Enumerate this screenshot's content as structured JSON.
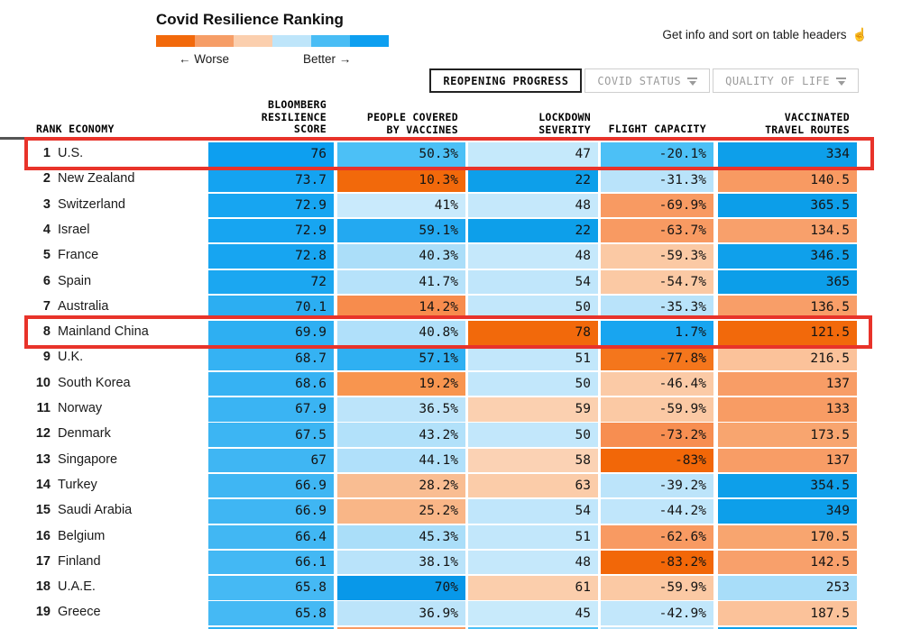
{
  "legend": {
    "title": "Covid Resilience Ranking",
    "worse_label": "← Worse",
    "better_label": "Better →",
    "gradient": [
      "#f2690b",
      "#f69d66",
      "#fbcfae",
      "#bee5fa",
      "#49bdf5",
      "#0d9ff0"
    ]
  },
  "hint": {
    "text": "Get info and sort on table headers",
    "icon": "pointer-hand-icon",
    "icon_glyph": "☝"
  },
  "tabs": [
    {
      "label": "REOPENING PROGRESS",
      "active": true,
      "has_filter_icon": false
    },
    {
      "label": "COVID STATUS",
      "active": false,
      "has_filter_icon": true
    },
    {
      "label": "QUALITY OF LIFE",
      "active": false,
      "has_filter_icon": true
    }
  ],
  "colors": {
    "highlight_box": "#e8332a",
    "active_tab_border": "#222222",
    "inactive_tab_border": "#cfcfcf",
    "inactive_tab_text": "#9b9b9b"
  },
  "table": {
    "headers": {
      "rank_economy": "RANK ECONOMY",
      "score": "BLOOMBERG\nRESILIENCE\nSCORE",
      "vaccines": "PEOPLE COVERED\nBY VACCINES",
      "lockdown": "LOCKDOWN\nSEVERITY",
      "flight": "FLIGHT CAPACITY",
      "routes": "VACCINATED\nTRAVEL ROUTES"
    },
    "rows": [
      {
        "rank": "1",
        "economy": "U.S.",
        "highlighted": true,
        "score": {
          "v": "76",
          "c": "#0d9ff0"
        },
        "vaccines": {
          "v": "50.3%",
          "c": "#4cc0f6"
        },
        "lockdown": {
          "v": "47",
          "c": "#c5e9fb"
        },
        "flight": {
          "v": "-20.1%",
          "c": "#4cc0f6"
        },
        "routes": {
          "v": "334",
          "c": "#0d9fea"
        }
      },
      {
        "rank": "2",
        "economy": "New Zealand",
        "highlighted": false,
        "score": {
          "v": "73.7",
          "c": "#14a3f1"
        },
        "vaccines": {
          "v": "10.3%",
          "c": "#f2690b"
        },
        "lockdown": {
          "v": "22",
          "c": "#0d9fea"
        },
        "flight": {
          "v": "-31.3%",
          "c": "#b9e3fa"
        },
        "routes": {
          "v": "140.5",
          "c": "#f89a62"
        }
      },
      {
        "rank": "3",
        "economy": "Switzerland",
        "highlighted": false,
        "score": {
          "v": "72.9",
          "c": "#17a5f1"
        },
        "vaccines": {
          "v": "41%",
          "c": "#c9eafc"
        },
        "lockdown": {
          "v": "48",
          "c": "#c5e8fb"
        },
        "flight": {
          "v": "-69.9%",
          "c": "#f89a62"
        },
        "routes": {
          "v": "365.5",
          "c": "#0c9ee9"
        }
      },
      {
        "rank": "4",
        "economy": "Israel",
        "highlighted": false,
        "score": {
          "v": "72.9",
          "c": "#17a5f1"
        },
        "vaccines": {
          "v": "59.1%",
          "c": "#23a9f1"
        },
        "lockdown": {
          "v": "22",
          "c": "#0d9fea"
        },
        "flight": {
          "v": "-63.7%",
          "c": "#f89a62"
        },
        "routes": {
          "v": "134.5",
          "c": "#f8a06b"
        }
      },
      {
        "rank": "5",
        "economy": "France",
        "highlighted": false,
        "score": {
          "v": "72.8",
          "c": "#17a5f1"
        },
        "vaccines": {
          "v": "40.3%",
          "c": "#abdef9"
        },
        "lockdown": {
          "v": "48",
          "c": "#c5e8fb"
        },
        "flight": {
          "v": "-59.3%",
          "c": "#fbc9a4"
        },
        "routes": {
          "v": "346.5",
          "c": "#0fa0eb"
        }
      },
      {
        "rank": "6",
        "economy": "Spain",
        "highlighted": false,
        "score": {
          "v": "72",
          "c": "#1ba7f1"
        },
        "vaccines": {
          "v": "41.7%",
          "c": "#b6e2fa"
        },
        "lockdown": {
          "v": "54",
          "c": "#c0e6fb"
        },
        "flight": {
          "v": "-54.7%",
          "c": "#fbc9a4"
        },
        "routes": {
          "v": "365",
          "c": "#0c9ee9"
        }
      },
      {
        "rank": "7",
        "economy": "Australia",
        "highlighted": false,
        "score": {
          "v": "70.1",
          "c": "#2caef2"
        },
        "vaccines": {
          "v": "14.2%",
          "c": "#f78c4d"
        },
        "lockdown": {
          "v": "50",
          "c": "#c2e7fb"
        },
        "flight": {
          "v": "-35.3%",
          "c": "#b9e3fa"
        },
        "routes": {
          "v": "136.5",
          "c": "#f89e68"
        }
      },
      {
        "rank": "8",
        "economy": "Mainland China",
        "highlighted": true,
        "score": {
          "v": "69.9",
          "c": "#2eaff2"
        },
        "vaccines": {
          "v": "40.8%",
          "c": "#b0e0fa"
        },
        "lockdown": {
          "v": "78",
          "c": "#f2690b"
        },
        "flight": {
          "v": "1.7%",
          "c": "#18a5f0"
        },
        "routes": {
          "v": "121.5",
          "c": "#f2690b"
        }
      },
      {
        "rank": "9",
        "economy": "U.K.",
        "highlighted": false,
        "score": {
          "v": "68.7",
          "c": "#35b2f3"
        },
        "vaccines": {
          "v": "57.1%",
          "c": "#2fb0f2"
        },
        "lockdown": {
          "v": "51",
          "c": "#c2e7fb"
        },
        "flight": {
          "v": "-77.8%",
          "c": "#f4761c"
        },
        "routes": {
          "v": "216.5",
          "c": "#fbc29a"
        }
      },
      {
        "rank": "10",
        "economy": "South Korea",
        "highlighted": false,
        "score": {
          "v": "68.6",
          "c": "#36b2f3"
        },
        "vaccines": {
          "v": "19.2%",
          "c": "#f8954f"
        },
        "lockdown": {
          "v": "50",
          "c": "#c2e7fb"
        },
        "flight": {
          "v": "-46.4%",
          "c": "#fbcaa6"
        },
        "routes": {
          "v": "137",
          "c": "#f89d66"
        }
      },
      {
        "rank": "11",
        "economy": "Norway",
        "highlighted": false,
        "score": {
          "v": "67.9",
          "c": "#3ab4f3"
        },
        "vaccines": {
          "v": "36.5%",
          "c": "#bce4fa"
        },
        "lockdown": {
          "v": "59",
          "c": "#fbd0b0"
        },
        "flight": {
          "v": "-59.9%",
          "c": "#fbc9a4"
        },
        "routes": {
          "v": "133",
          "c": "#f89c64"
        }
      },
      {
        "rank": "12",
        "economy": "Denmark",
        "highlighted": false,
        "score": {
          "v": "67.5",
          "c": "#3cb5f3"
        },
        "vaccines": {
          "v": "43.2%",
          "c": "#b2e1fa"
        },
        "lockdown": {
          "v": "50",
          "c": "#c2e7fb"
        },
        "flight": {
          "v": "-73.2%",
          "c": "#f78e51"
        },
        "routes": {
          "v": "173.5",
          "c": "#f8a56f"
        }
      },
      {
        "rank": "13",
        "economy": "Singapore",
        "highlighted": false,
        "score": {
          "v": "67",
          "c": "#3fb6f3"
        },
        "vaccines": {
          "v": "44.1%",
          "c": "#b0e0fa"
        },
        "lockdown": {
          "v": "58",
          "c": "#fbd2b4"
        },
        "flight": {
          "v": "-83%",
          "c": "#f26708"
        },
        "routes": {
          "v": "137",
          "c": "#f89d66"
        }
      },
      {
        "rank": "14",
        "economy": "Turkey",
        "highlighted": false,
        "score": {
          "v": "66.9",
          "c": "#3fb6f3"
        },
        "vaccines": {
          "v": "28.2%",
          "c": "#f9bd92"
        },
        "lockdown": {
          "v": "63",
          "c": "#fbcca9"
        },
        "flight": {
          "v": "-39.2%",
          "c": "#bce4fa"
        },
        "routes": {
          "v": "354.5",
          "c": "#0d9fea"
        }
      },
      {
        "rank": "15",
        "economy": "Saudi Arabia",
        "highlighted": false,
        "score": {
          "v": "66.9",
          "c": "#3fb6f3"
        },
        "vaccines": {
          "v": "25.2%",
          "c": "#f9b687"
        },
        "lockdown": {
          "v": "54",
          "c": "#c0e6fb"
        },
        "flight": {
          "v": "-44.2%",
          "c": "#c0e6fb"
        },
        "routes": {
          "v": "349",
          "c": "#0d9fea"
        }
      },
      {
        "rank": "16",
        "economy": "Belgium",
        "highlighted": false,
        "score": {
          "v": "66.4",
          "c": "#41b7f3"
        },
        "vaccines": {
          "v": "45.3%",
          "c": "#aadef9"
        },
        "lockdown": {
          "v": "51",
          "c": "#c2e7fb"
        },
        "flight": {
          "v": "-62.6%",
          "c": "#f89a62"
        },
        "routes": {
          "v": "170.5",
          "c": "#f8a56f"
        }
      },
      {
        "rank": "17",
        "economy": "Finland",
        "highlighted": false,
        "score": {
          "v": "66.1",
          "c": "#43b8f4"
        },
        "vaccines": {
          "v": "38.1%",
          "c": "#b9e3fa"
        },
        "lockdown": {
          "v": "48",
          "c": "#c5e8fb"
        },
        "flight": {
          "v": "-83.2%",
          "c": "#f26708"
        },
        "routes": {
          "v": "142.5",
          "c": "#f8a06b"
        }
      },
      {
        "rank": "18",
        "economy": "U.A.E.",
        "highlighted": false,
        "score": {
          "v": "65.8",
          "c": "#45b9f4"
        },
        "vaccines": {
          "v": "70%",
          "c": "#0898e9"
        },
        "lockdown": {
          "v": "61",
          "c": "#fbceac"
        },
        "flight": {
          "v": "-59.9%",
          "c": "#fbc9a4"
        },
        "routes": {
          "v": "253",
          "c": "#a8ddf9"
        }
      },
      {
        "rank": "19",
        "economy": "Greece",
        "highlighted": false,
        "score": {
          "v": "65.8",
          "c": "#45b9f4"
        },
        "vaccines": {
          "v": "36.9%",
          "c": "#bce4fa"
        },
        "lockdown": {
          "v": "45",
          "c": "#c8eafb"
        },
        "flight": {
          "v": "-42.9%",
          "c": "#c2e7fb"
        },
        "routes": {
          "v": "187.5",
          "c": "#fbc29a"
        }
      }
    ],
    "partial_next_row_colors": [
      "#2bb0f2",
      "#f89a62",
      "#4cc0f6",
      "#bce4fa",
      "#0d9fe9"
    ]
  },
  "chart_data": {
    "type": "table",
    "title": "Covid Resilience Ranking",
    "legend": {
      "left": "Worse",
      "right": "Better"
    },
    "columns": [
      "Rank",
      "Economy",
      "Bloomberg Resilience Score",
      "People Covered by Vaccines",
      "Lockdown Severity",
      "Flight Capacity",
      "Vaccinated Travel Routes"
    ],
    "rows": [
      [
        1,
        "U.S.",
        76,
        "50.3%",
        47,
        "-20.1%",
        334
      ],
      [
        2,
        "New Zealand",
        73.7,
        "10.3%",
        22,
        "-31.3%",
        140.5
      ],
      [
        3,
        "Switzerland",
        72.9,
        "41%",
        48,
        "-69.9%",
        365.5
      ],
      [
        4,
        "Israel",
        72.9,
        "59.1%",
        22,
        "-63.7%",
        134.5
      ],
      [
        5,
        "France",
        72.8,
        "40.3%",
        48,
        "-59.3%",
        346.5
      ],
      [
        6,
        "Spain",
        72,
        "41.7%",
        54,
        "-54.7%",
        365
      ],
      [
        7,
        "Australia",
        70.1,
        "14.2%",
        50,
        "-35.3%",
        136.5
      ],
      [
        8,
        "Mainland China",
        69.9,
        "40.8%",
        78,
        "1.7%",
        121.5
      ],
      [
        9,
        "U.K.",
        68.7,
        "57.1%",
        51,
        "-77.8%",
        216.5
      ],
      [
        10,
        "South Korea",
        68.6,
        "19.2%",
        50,
        "-46.4%",
        137
      ],
      [
        11,
        "Norway",
        67.9,
        "36.5%",
        59,
        "-59.9%",
        133
      ],
      [
        12,
        "Denmark",
        67.5,
        "43.2%",
        50,
        "-73.2%",
        173.5
      ],
      [
        13,
        "Singapore",
        67,
        "44.1%",
        58,
        "-83%",
        137
      ],
      [
        14,
        "Turkey",
        66.9,
        "28.2%",
        63,
        "-39.2%",
        354.5
      ],
      [
        15,
        "Saudi Arabia",
        66.9,
        "25.2%",
        54,
        "-44.2%",
        349
      ],
      [
        16,
        "Belgium",
        66.4,
        "45.3%",
        51,
        "-62.6%",
        170.5
      ],
      [
        17,
        "Finland",
        66.1,
        "38.1%",
        48,
        "-83.2%",
        142.5
      ],
      [
        18,
        "U.A.E.",
        65.8,
        "70%",
        61,
        "-59.9%",
        253
      ],
      [
        19,
        "Greece",
        65.8,
        "36.9%",
        45,
        "-42.9%",
        187.5
      ]
    ],
    "annotations": [
      "Row 1 (U.S.) outlined in red",
      "Row 8 (Mainland China) outlined in red"
    ]
  }
}
